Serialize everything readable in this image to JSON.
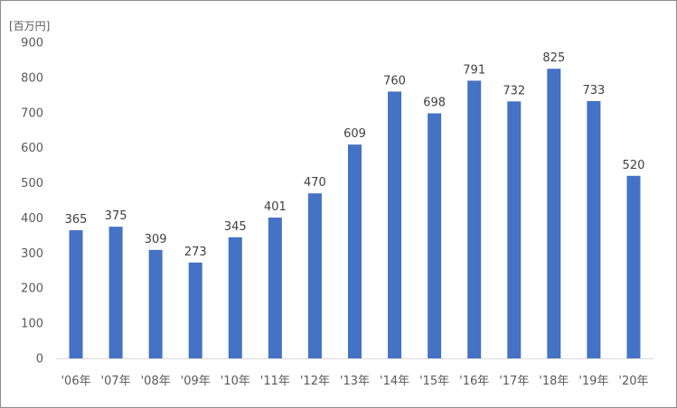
{
  "chart_data": {
    "type": "bar",
    "unit_label": "[百万円]",
    "categories": [
      "'06年",
      "'07年",
      "'08年",
      "'09年",
      "'10年",
      "'11年",
      "'12年",
      "'13年",
      "'14年",
      "'15年",
      "'16年",
      "'17年",
      "'18年",
      "'19年",
      "'20年"
    ],
    "values": [
      365,
      375,
      309,
      273,
      345,
      401,
      470,
      609,
      760,
      698,
      791,
      732,
      825,
      733,
      520
    ],
    "ylim": [
      0,
      900
    ],
    "yticks": [
      0,
      100,
      200,
      300,
      400,
      500,
      600,
      700,
      800,
      900
    ],
    "grid": false,
    "legend": "none",
    "bar_color": "#4472c4",
    "axis_color": "#d9d9d9"
  }
}
